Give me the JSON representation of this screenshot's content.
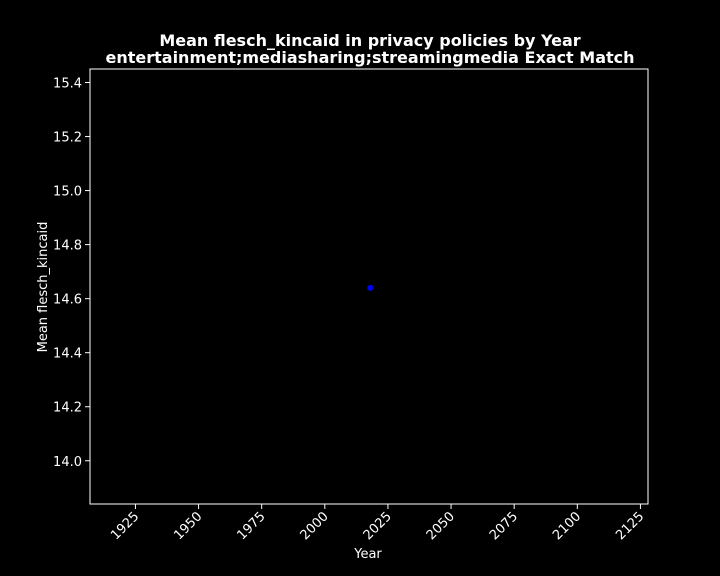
{
  "chart_data": {
    "type": "scatter",
    "title": "Mean flesch_kincaid in privacy policies by Year",
    "subtitle": "entertainment;mediasharing;streamingmedia Exact Match",
    "xlabel": "Year",
    "ylabel": "Mean flesch_kincaid",
    "xlim": [
      1907,
      2128
    ],
    "ylim": [
      13.84,
      15.45
    ],
    "x_ticks": [
      "1925",
      "1950",
      "1975",
      "2000",
      "2025",
      "2050",
      "2075",
      "2100",
      "2125"
    ],
    "y_ticks": [
      "14.0",
      "14.2",
      "14.4",
      "14.6",
      "14.8",
      "15.0",
      "15.2",
      "15.4"
    ],
    "x_tick_rotation": "45 degrees",
    "grid": false,
    "legend": "none",
    "background_color": "#000000",
    "axis_color": "#ffffff",
    "point_color": "#0000ff",
    "points": [
      {
        "x": 2018,
        "y": 14.64
      }
    ]
  }
}
